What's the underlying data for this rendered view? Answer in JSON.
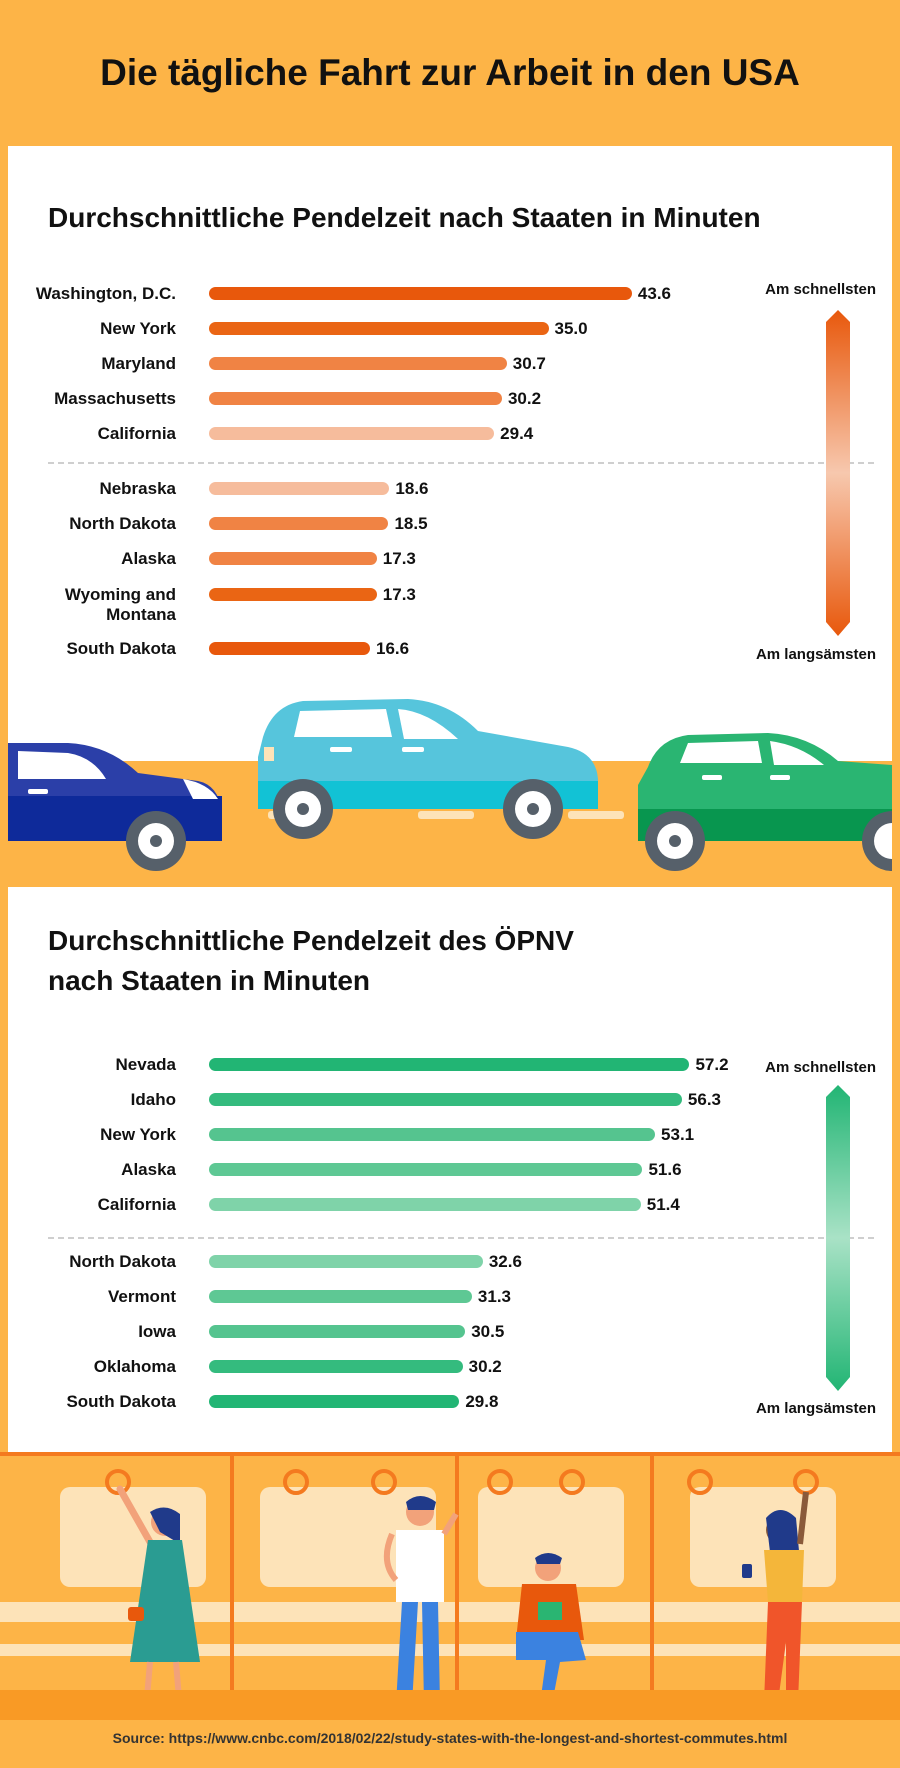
{
  "title": "Die tägliche Fahrt zur Arbeit in den USA",
  "chart_data": [
    {
      "type": "bar",
      "orientation": "horizontal",
      "title": "Durchschnittliche Pendelzeit nach Staaten in Minuten",
      "categories": [
        "Washington, D.C.",
        "New York",
        "Maryland",
        "Massachusetts",
        "California",
        "Nebraska",
        "North Dakota",
        "Alaska",
        "Wyoming and Montana",
        "South Dakota"
      ],
      "values": [
        43.6,
        35.0,
        30.7,
        30.2,
        29.4,
        18.6,
        18.5,
        17.3,
        17.3,
        16.6
      ],
      "value_labels": [
        "43.6",
        "35.0",
        "30.7",
        "30.2",
        "29.4",
        "18.6",
        "18.5",
        "17.3",
        "17.3",
        "16.6"
      ],
      "colors": [
        "#e8580c",
        "#ea6514",
        "#f08344",
        "#f08344",
        "#f6bc9c",
        "#f6bc9c",
        "#f08344",
        "#f08344",
        "#ea6514",
        "#e8580c"
      ],
      "legend": {
        "top": "Am schnellsten",
        "bottom": "Am langsämsten",
        "placement": "right"
      }
    },
    {
      "type": "bar",
      "orientation": "horizontal",
      "title": "Durchschnittliche Pendelzeit des ÖPNV nach Staaten in Minuten",
      "title_lines": [
        "Durchschnittliche Pendelzeit des ÖPNV",
        "nach Staaten in Minuten"
      ],
      "categories": [
        "Nevada",
        "Idaho",
        "New York",
        "Alaska",
        "California",
        "North Dakota",
        "Vermont",
        "Iowa",
        "Oklahoma",
        "South Dakota"
      ],
      "values": [
        57.2,
        56.3,
        53.1,
        51.6,
        51.4,
        32.6,
        31.3,
        30.5,
        30.2,
        29.8
      ],
      "value_labels": [
        "57.2",
        "56.3",
        "53.1",
        "51.6",
        "51.4",
        "32.6",
        "31.3",
        "30.5",
        "30.2",
        "29.8"
      ],
      "colors": [
        "#22b574",
        "#34bb7e",
        "#55c48f",
        "#5ec894",
        "#7fd3a9",
        "#7fd3a9",
        "#5ec894",
        "#55c48f",
        "#34bb7e",
        "#22b574"
      ],
      "legend": {
        "top": "Am schnellsten",
        "bottom": "Am langsämsten",
        "placement": "right"
      }
    }
  ],
  "source": "Source: https://www.cnbc.com/2018/02/22/study-states-with-the-longest-and-shortest-commutes.html",
  "colors": {
    "background": "#fdb447",
    "orange_accent": "#e8580c",
    "green_accent": "#22b574"
  }
}
